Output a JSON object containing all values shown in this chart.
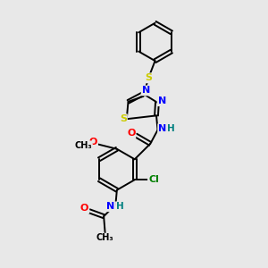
{
  "background_color": "#e8e8e8",
  "bond_color": "#000000",
  "atom_colors": {
    "O": "#ff0000",
    "N": "#0000ff",
    "S": "#cccc00",
    "Cl": "#008000",
    "H": "#008080",
    "C": "#000000"
  },
  "figsize": [
    3.0,
    3.0
  ],
  "dpi": 100
}
